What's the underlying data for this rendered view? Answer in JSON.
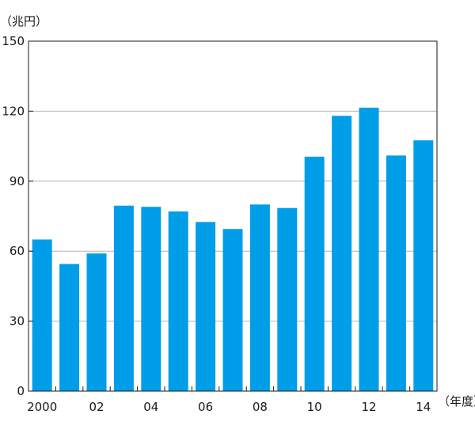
{
  "chart_data": {
    "type": "bar",
    "title": "",
    "ylabel": "（兆円）",
    "xlabel": "（年度）",
    "x": [
      2000,
      2001,
      2002,
      2003,
      2004,
      2005,
      2006,
      2007,
      2008,
      2009,
      2010,
      2011,
      2012,
      2013,
      2014
    ],
    "values": [
      65,
      54.5,
      59,
      79.5,
      79,
      77,
      72.5,
      69.5,
      80,
      78.5,
      100.5,
      118,
      121.5,
      101,
      107.5
    ],
    "x_tick_labels": [
      {
        "x": 2000,
        "label": "2000"
      },
      {
        "x": 2002,
        "label": "02"
      },
      {
        "x": 2004,
        "label": "04"
      },
      {
        "x": 2006,
        "label": "06"
      },
      {
        "x": 2008,
        "label": "08"
      },
      {
        "x": 2010,
        "label": "10"
      },
      {
        "x": 2012,
        "label": "12"
      },
      {
        "x": 2014,
        "label": "14"
      }
    ],
    "y_ticks": [
      0,
      30,
      60,
      90,
      120,
      150
    ],
    "y_tick_labels": [
      "0",
      "30",
      "60",
      "90",
      "120",
      "150"
    ],
    "ylim": [
      0,
      150
    ],
    "grid": true,
    "bar_color": "#009ee8",
    "grid_color": "#b3b3b3",
    "axis_color": "#1a1a1a"
  }
}
